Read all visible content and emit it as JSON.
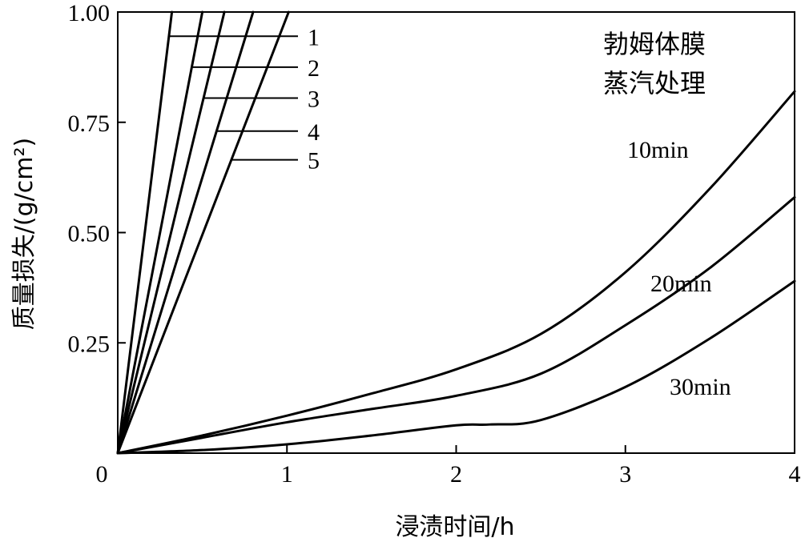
{
  "chart_data": {
    "type": "line",
    "xlabel": "浸渍时间/h",
    "ylabel": "质量损失/(g/cm²)",
    "xlim": [
      0,
      4
    ],
    "ylim": [
      0,
      1.0
    ],
    "x_ticks": [
      "0",
      "1",
      "2",
      "3",
      "4"
    ],
    "y_ticks": [
      "0.25",
      "0.50",
      "0.75",
      "1.00"
    ],
    "grid": false,
    "annotation": [
      "勃姆体膜",
      "蒸汽处理"
    ],
    "series": [
      {
        "name": "1",
        "x": [
          0,
          0.32
        ],
        "y": [
          0,
          1.0
        ]
      },
      {
        "name": "2",
        "x": [
          0,
          0.5
        ],
        "y": [
          0,
          1.0
        ]
      },
      {
        "name": "3",
        "x": [
          0,
          0.63
        ],
        "y": [
          0,
          1.0
        ]
      },
      {
        "name": "4",
        "x": [
          0,
          0.8
        ],
        "y": [
          0,
          1.0
        ]
      },
      {
        "name": "5",
        "x": [
          0,
          1.01
        ],
        "y": [
          0,
          1.0
        ]
      },
      {
        "name": "10min",
        "x": [
          0,
          0.5,
          1,
          1.5,
          2,
          2.5,
          3,
          3.5,
          4
        ],
        "y": [
          0,
          0.04,
          0.085,
          0.135,
          0.19,
          0.27,
          0.41,
          0.6,
          0.82
        ]
      },
      {
        "name": "20min",
        "x": [
          0,
          0.5,
          1,
          1.5,
          2,
          2.5,
          3,
          3.5,
          4
        ],
        "y": [
          0,
          0.035,
          0.07,
          0.1,
          0.13,
          0.18,
          0.29,
          0.42,
          0.58
        ]
      },
      {
        "name": "30min",
        "x": [
          0,
          0.5,
          1,
          1.5,
          2,
          2.2,
          2.5,
          3,
          3.5,
          4
        ],
        "y": [
          0,
          0.007,
          0.02,
          0.04,
          0.063,
          0.065,
          0.075,
          0.15,
          0.26,
          0.39
        ]
      }
    ]
  }
}
